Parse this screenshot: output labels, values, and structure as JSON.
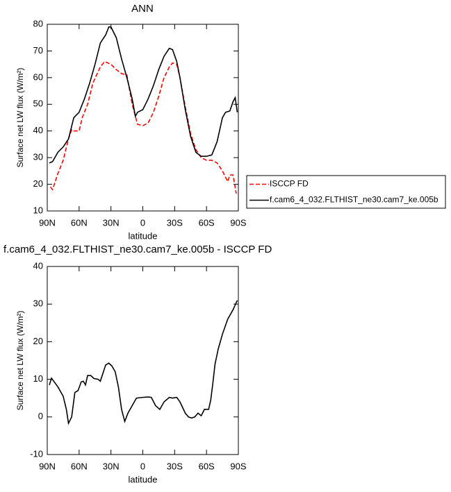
{
  "chart_data": [
    {
      "type": "line",
      "title": "ANN",
      "x_label": "latitude",
      "y_label": "Surface net LW flux (W/m²)",
      "x": [
        87,
        85,
        80,
        75,
        70,
        67,
        65,
        60,
        57,
        52,
        47,
        40,
        36,
        30,
        25,
        20,
        15,
        10,
        5,
        0,
        -5,
        -10,
        -15,
        -20,
        -25,
        -28,
        -32,
        -35,
        -40,
        -45,
        -50,
        -55,
        -60,
        -65,
        -70,
        -75,
        -80,
        -82,
        -85,
        -88
      ],
      "series": [
        {
          "name": "ISCCP FD",
          "color": "#ff0000",
          "line_style": "dashed",
          "values": [
            19,
            18,
            24,
            29,
            37,
            40.5,
            40,
            40,
            45,
            50,
            58,
            64,
            66,
            65,
            63,
            61.5,
            61,
            50,
            42.5,
            42,
            43,
            47,
            53,
            60,
            64,
            65.5,
            65,
            60,
            49,
            39,
            33,
            30,
            29,
            29,
            28,
            25,
            21,
            23.5,
            23.5,
            16.5
          ]
        },
        {
          "name": "f.cam6_4_032.FLTHIST_ne30.cam7_ke.005b",
          "color": "#000000",
          "line_style": "solid",
          "x": [
            88,
            85,
            80,
            75,
            70,
            65,
            60,
            55,
            50,
            45,
            40,
            35,
            32,
            30,
            25,
            20,
            15,
            10,
            7,
            5,
            0,
            -5,
            -10,
            -15,
            -20,
            -25,
            -28,
            -32,
            -35,
            -40,
            -45,
            -50,
            -55,
            -60,
            -65,
            -70,
            -75,
            -78,
            -82,
            -85,
            -87,
            -89
          ],
          "values": [
            28,
            28.5,
            32,
            34,
            37,
            45,
            47,
            52,
            58,
            65,
            73,
            76,
            79,
            79,
            75,
            67,
            60,
            52,
            45.5,
            47,
            48,
            52,
            57,
            63,
            68,
            71,
            70.5,
            66,
            60,
            48,
            38,
            32,
            30.5,
            30.5,
            31,
            36,
            45,
            47,
            47.5,
            51,
            52.5,
            47
          ]
        }
      ],
      "xlim": [
        90,
        -90
      ],
      "xticks": [
        {
          "value": 90,
          "label": "90N"
        },
        {
          "value": 60,
          "label": "60N"
        },
        {
          "value": 30,
          "label": "30N"
        },
        0,
        {
          "value": -30,
          "label": "30S"
        },
        {
          "value": -60,
          "label": "60S"
        },
        {
          "value": -90,
          "label": "90S"
        }
      ],
      "ylim": [
        10,
        80
      ],
      "yticks": [
        10,
        20,
        30,
        40,
        50,
        60,
        70,
        80
      ],
      "legend": "right"
    },
    {
      "type": "line",
      "title": "f.cam6_4_032.FLTHIST_ne30.cam7_ke.005b - ISCCP FD",
      "x_label": "latitude",
      "y_label": "Surface net LW flux (W/m²)",
      "x": [
        88,
        86,
        80,
        75,
        72,
        70,
        67,
        64,
        61,
        58,
        56,
        54,
        52,
        49,
        46,
        42,
        40,
        35,
        32,
        29,
        26,
        23,
        20,
        17,
        14,
        10,
        6,
        0,
        -5,
        -8,
        -12,
        -16,
        -20,
        -25,
        -28,
        -32,
        -35,
        -40,
        -43,
        -46,
        -49,
        -52,
        -55,
        -58,
        -62,
        -64,
        -66,
        -68,
        -71,
        -75,
        -80,
        -85,
        -89
      ],
      "series": [
        {
          "name": null,
          "color": "#000000",
          "line_style": "solid",
          "values": [
            8.5,
            10.3,
            8,
            5.5,
            2,
            -1.7,
            0,
            6.5,
            7,
            9.3,
            9.5,
            8.5,
            11,
            11,
            10.2,
            10,
            9.5,
            13.8,
            14.3,
            13.5,
            12,
            8,
            2,
            -1.2,
            1,
            3,
            5,
            5.2,
            5.3,
            5.2,
            3,
            2,
            4,
            5.2,
            5,
            5.2,
            4,
            1,
            0,
            -0.3,
            0,
            1,
            0.3,
            2,
            2,
            4.5,
            9,
            14,
            18,
            22,
            26,
            28.5,
            31
          ]
        }
      ],
      "xlim": [
        90,
        -90
      ],
      "xticks": [
        {
          "value": 90,
          "label": "90N"
        },
        {
          "value": 60,
          "label": "60N"
        },
        {
          "value": 30,
          "label": "30N"
        },
        0,
        {
          "value": -30,
          "label": "30S"
        },
        {
          "value": -60,
          "label": "60S"
        },
        {
          "value": -90,
          "label": "90S"
        }
      ],
      "ylim": [
        -10,
        40
      ],
      "yticks": [
        -10,
        0,
        10,
        20,
        30,
        40
      ]
    }
  ]
}
